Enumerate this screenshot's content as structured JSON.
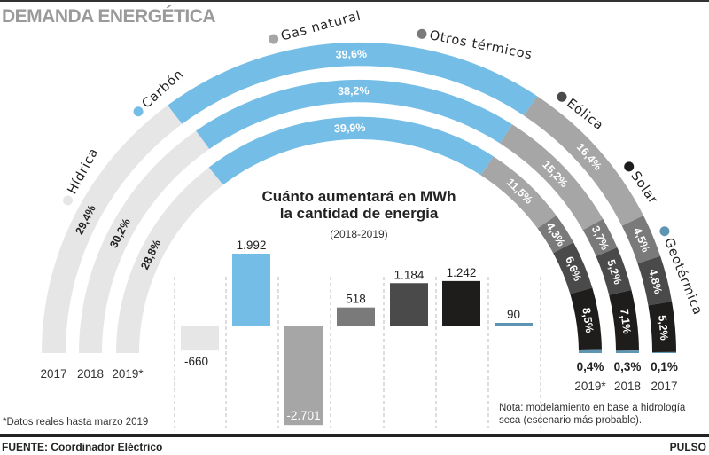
{
  "header": {
    "title": "DEMANDA ENERGÉTICA"
  },
  "footer": {
    "footnote": "*Datos reales hasta marzo 2019",
    "note": "Nota: modelamiento en base a hidrología seca (escenario más probable).",
    "source": "FUENTE: Coordinador Eléctrico",
    "brand": "PULSO"
  },
  "colors": {
    "Hídrica": "#e6e6e6",
    "Carbón": "#74bde6",
    "Gas natural": "#a6a6a6",
    "Otros térmicos": "#7a7a7a",
    "Eólica": "#4a4a4a",
    "Solar": "#1f1c1c",
    "Geotérmica": "#5e95b3"
  },
  "chart_data": [
    {
      "type": "pie",
      "title": "DEMANDA ENERGÉTICA",
      "subtype": "stacked semicircular rings",
      "legend": [
        "Hídrica",
        "Carbón",
        "Gas natural",
        "Otros térmicos",
        "Eólica",
        "Solar",
        "Geotérmica"
      ],
      "legend_dot_colors": [
        "#e6e6e6",
        "#74bde6",
        "#a6a6a6",
        "#7a7a7a",
        "#4a4a4a",
        "#1f1c1c",
        "#5e95b3"
      ],
      "unit": "%",
      "series": [
        {
          "name": "2017",
          "label": "2017",
          "values": [
            29.4,
            39.6,
            16.4,
            4.5,
            4.8,
            5.2,
            0.1
          ],
          "labels": [
            "29,4%",
            "39,6%",
            "16,4%",
            "4,5%",
            "4,8%",
            "5,2%",
            "0,1%"
          ]
        },
        {
          "name": "2018",
          "label": "2018",
          "values": [
            30.2,
            38.2,
            15.2,
            3.7,
            5.2,
            7.1,
            0.3
          ],
          "labels": [
            "30,2%",
            "38,2%",
            "15,2%",
            "3,7%",
            "5,2%",
            "7,1%",
            "0,3%"
          ]
        },
        {
          "name": "2019",
          "label": "2019*",
          "values": [
            28.8,
            39.9,
            11.5,
            4.3,
            6.6,
            8.5,
            0.4
          ],
          "labels": [
            "28,8%",
            "39,9%",
            "11,5%",
            "4,3%",
            "6,6%",
            "8,5%",
            "0,4%"
          ]
        }
      ]
    },
    {
      "type": "bar",
      "title": "Cuánto aumentará en MWh la cantidad de energía",
      "title_lines": [
        "Cuánto aumentará en MWh",
        "la cantidad de energía"
      ],
      "subtitle": "(2018-2019)",
      "categories": [
        "Hídrica",
        "Carbón",
        "Gas natural",
        "Otros térmicos",
        "Eólica",
        "Solar",
        "Geotérmica"
      ],
      "values": [
        -660,
        1992,
        -2701,
        518,
        1184,
        1242,
        90
      ],
      "value_labels": [
        "-660",
        "1.992",
        "-2.701",
        "518",
        "1.184",
        "1.242",
        "90"
      ],
      "xlabel": "",
      "ylabel": "MWh",
      "ylim": [
        -2800,
        2100
      ],
      "grid": false
    }
  ]
}
